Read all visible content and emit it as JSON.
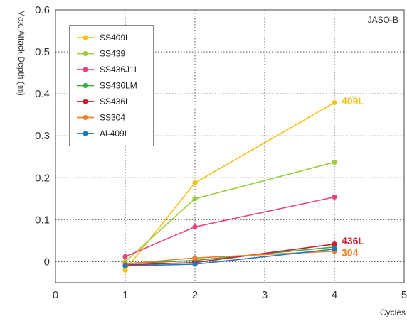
{
  "chart_data": {
    "type": "line",
    "title": "",
    "corner_label": "JASO-B",
    "xlabel": "Cycles",
    "ylabel": "Max. Attack Depth (㎜)",
    "xlim": [
      0,
      5
    ],
    "ylim": [
      -0.05,
      0.6
    ],
    "xticks": [
      0,
      1,
      2,
      3,
      4,
      5
    ],
    "yticks": [
      0,
      0.1,
      0.2,
      0.3,
      0.4,
      0.5,
      0.6
    ],
    "ytick_labels": [
      "0",
      "0.1",
      "0.2",
      "0.3",
      "0.4",
      "0.5",
      "0.6"
    ],
    "grid": true,
    "legend_position": "top-left",
    "series": [
      {
        "name": "SS409L",
        "color": "#f5c21b",
        "x": [
          1,
          2,
          4
        ],
        "y": [
          -0.02,
          0.188,
          0.379
        ]
      },
      {
        "name": "SS439",
        "color": "#9acd3c",
        "x": [
          1,
          2,
          4
        ],
        "y": [
          0.0,
          0.15,
          0.237
        ]
      },
      {
        "name": "SS436J1L",
        "color": "#e8467c",
        "x": [
          1,
          2,
          4
        ],
        "y": [
          0.012,
          0.083,
          0.154
        ]
      },
      {
        "name": "SS436LM",
        "color": "#3aab47",
        "x": [
          1,
          2,
          4
        ],
        "y": [
          -0.005,
          0.003,
          0.035
        ]
      },
      {
        "name": "SS436L",
        "color": "#c81f2d",
        "x": [
          1,
          2,
          4
        ],
        "y": [
          -0.008,
          -0.002,
          0.042
        ]
      },
      {
        "name": "SS304",
        "color": "#ef7f2a",
        "x": [
          1,
          2,
          4
        ],
        "y": [
          -0.005,
          0.009,
          0.025
        ]
      },
      {
        "name": "Al-409L",
        "color": "#1f77c4",
        "x": [
          1,
          2,
          4
        ],
        "y": [
          -0.01,
          -0.006,
          0.03
        ]
      }
    ],
    "annotations": [
      {
        "text": "409L",
        "color": "#f5c21b",
        "x": 4,
        "y": 0.383
      },
      {
        "text": "436L",
        "color": "#d2232e",
        "x": 4,
        "y": 0.05
      },
      {
        "text": "304",
        "color": "#ef7f2a",
        "x": 4,
        "y": 0.022
      }
    ]
  }
}
